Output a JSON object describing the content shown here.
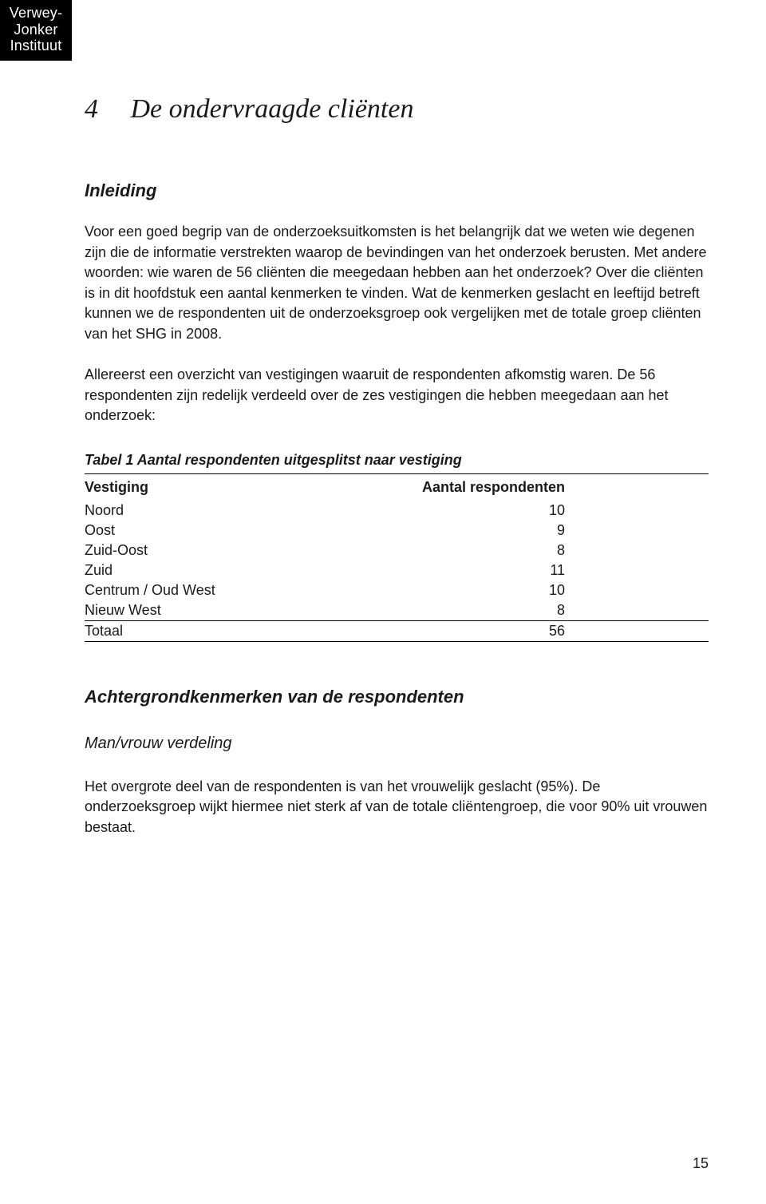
{
  "logo": {
    "line1": "Verwey-",
    "line2": "Jonker",
    "line3": "Instituut"
  },
  "chapter": {
    "number": "4",
    "title": "De ondervraagde cliënten"
  },
  "section_inleiding": "Inleiding",
  "para1": "Voor een goed begrip van de onderzoeksuitkomsten is het belangrijk dat we weten wie degenen zijn die de informatie verstrekten waarop de bevindingen van het onderzoek berusten. Met andere woorden: wie waren de 56 cliënten die meegedaan hebben aan het onderzoek? Over die cliënten is in dit hoofdstuk een aantal kenmerken te vinden. Wat de kenmerken geslacht en leeftijd betreft kunnen we de respondenten uit de onderzoeksgroep ook vergelijken met de totale groep cliënten van het SHG in 2008.",
  "para2": "Allereerst een overzicht van vestigingen waaruit de respondenten afkomstig waren. De 56 respondenten zijn redelijk verdeeld over de zes vestigingen die hebben meegedaan aan het onderzoek:",
  "table1": {
    "caption": "Tabel 1 Aantal respondenten uitgesplitst naar vestiging",
    "col1": "Vestiging",
    "col2": "Aantal respondenten",
    "rows": [
      {
        "label": "Noord",
        "value": "10"
      },
      {
        "label": "Oost",
        "value": "9"
      },
      {
        "label": "Zuid-Oost",
        "value": "8"
      },
      {
        "label": "Zuid",
        "value": "11"
      },
      {
        "label": "Centrum / Oud West",
        "value": "10"
      },
      {
        "label": "Nieuw West",
        "value": "8"
      }
    ],
    "total_label": "Totaal",
    "total_value": "56"
  },
  "section_achtergrond": "Achtergrondkenmerken van de respondenten",
  "subsection_manvrouw": "Man/vrouw verdeling",
  "para3": "Het overgrote deel van de respondenten is van het vrouwelijk geslacht (95%). De onderzoeksgroep wijkt hiermee niet sterk af van de totale cliëntengroep, die voor 90% uit vrouwen bestaat.",
  "page_number": "15",
  "styling": {
    "background_color": "#ffffff",
    "text_color": "#1a1a1a",
    "logo_bg": "#000000",
    "logo_text": "#ffffff",
    "body_fontsize": 18,
    "chapter_fontsize": 34,
    "section_fontsize": 22,
    "font_family_serif": "Georgia",
    "font_family_sans": "Lucida Sans"
  }
}
